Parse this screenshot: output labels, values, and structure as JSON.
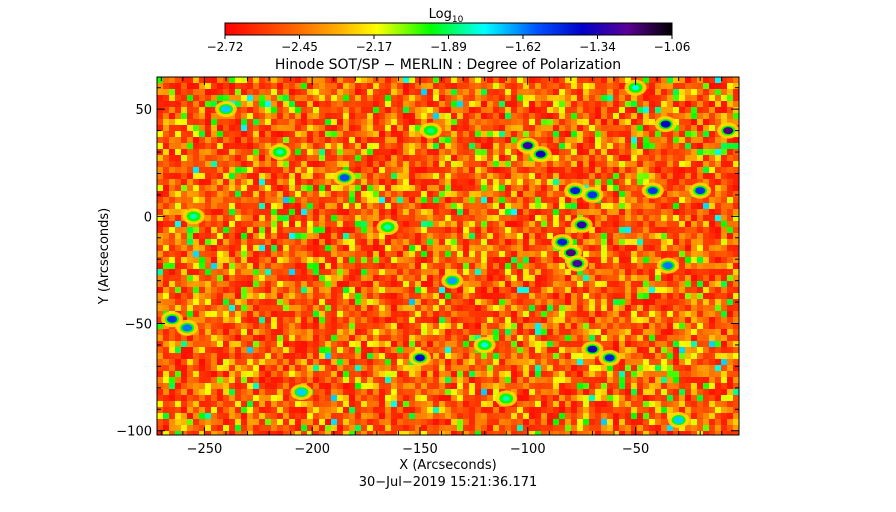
{
  "colorbar": {
    "label_base": "Log",
    "label_sub": "10",
    "ticks": [
      "−2.72",
      "−2.45",
      "−2.17",
      "−1.89",
      "−1.62",
      "−1.34",
      "−1.06"
    ],
    "range": [
      -2.72,
      -1.06
    ],
    "colormap": "rainbow (red → yellow → green → cyan → blue → purple → black)"
  },
  "chart_data": {
    "type": "heatmap",
    "title": "Hinode SOT/SP − MERLIN : Degree of Polarization",
    "xlabel": "X (Arcseconds)",
    "ylabel": "Y (Arcseconds)",
    "xlim": [
      -272,
      -2
    ],
    "ylim": [
      -102,
      65
    ],
    "x_ticks": [
      -250,
      -200,
      -150,
      -100,
      -50
    ],
    "y_ticks": [
      -100,
      -50,
      0,
      50
    ],
    "x_tick_labels": [
      "−250",
      "−200",
      "−150",
      "−100",
      "−50"
    ],
    "y_tick_labels": [
      "−100",
      "−50",
      "0",
      "50"
    ],
    "value_scale": "log10",
    "value_range": [
      -2.72,
      -1.06
    ],
    "background_value": -2.6,
    "features": [
      {
        "x": -100,
        "y": 33,
        "value": -1.3
      },
      {
        "x": -94,
        "y": 29,
        "value": -1.35
      },
      {
        "x": -80,
        "y": -17,
        "value": -1.2
      },
      {
        "x": -77,
        "y": -22,
        "value": -1.25
      },
      {
        "x": -84,
        "y": -12,
        "value": -1.45
      },
      {
        "x": -75,
        "y": -4,
        "value": -1.3
      },
      {
        "x": -78,
        "y": 12,
        "value": -1.45
      },
      {
        "x": -70,
        "y": 10,
        "value": -1.5
      },
      {
        "x": -7,
        "y": 40,
        "value": -1.2
      },
      {
        "x": -36,
        "y": 43,
        "value": -1.4
      },
      {
        "x": -42,
        "y": 12,
        "value": -1.5
      },
      {
        "x": -20,
        "y": 12,
        "value": -1.5
      },
      {
        "x": -35,
        "y": -23,
        "value": -1.6
      },
      {
        "x": -70,
        "y": -62,
        "value": -1.35
      },
      {
        "x": -62,
        "y": -66,
        "value": -1.45
      },
      {
        "x": -150,
        "y": -66,
        "value": -1.4
      },
      {
        "x": -265,
        "y": -48,
        "value": -1.5
      },
      {
        "x": -258,
        "y": -52,
        "value": -1.6
      },
      {
        "x": -185,
        "y": 18,
        "value": -1.55
      },
      {
        "x": -240,
        "y": 50,
        "value": -1.7
      },
      {
        "x": -135,
        "y": -30,
        "value": -1.65
      },
      {
        "x": -205,
        "y": -82,
        "value": -1.7
      },
      {
        "x": -165,
        "y": -5,
        "value": -1.8
      },
      {
        "x": -120,
        "y": -60,
        "value": -1.75
      },
      {
        "x": -30,
        "y": -95,
        "value": -1.7
      },
      {
        "x": -255,
        "y": 0,
        "value": -1.8
      },
      {
        "x": -215,
        "y": 30,
        "value": -1.8
      },
      {
        "x": -145,
        "y": 40,
        "value": -1.85
      },
      {
        "x": -110,
        "y": -85,
        "value": -1.8
      },
      {
        "x": -50,
        "y": 60,
        "value": -1.75
      }
    ]
  },
  "footer": {
    "timestamp": "30−Jul−2019  15:21:36.171"
  }
}
